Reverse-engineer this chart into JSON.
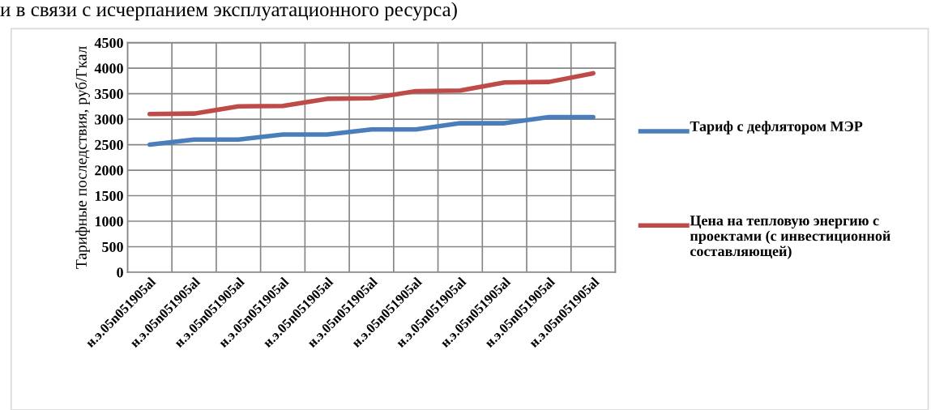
{
  "chart_data": {
    "type": "line",
    "ylabel": "Тарифные последствия, руб/Гкал",
    "annotations": [
      "и в связи с исчерпанием эксплуатационного ресурса)"
    ],
    "categories": [
      "н.э.05n051905al",
      "н.э.05n051905al",
      "н.э.05n051905al",
      "н.э.05n051905al",
      "н.э.05n051905al",
      "н.э.05n051905al",
      "н.э.05n051905al",
      "н.э.05n051905al",
      "н.э.05n051905al",
      "н.э.05n051905al",
      "н.э.05n051905al"
    ],
    "series": [
      {
        "name": "Тариф с дефлятором МЭР",
        "color": "#4a7ebb",
        "values": [
          2500,
          2600,
          2600,
          2700,
          2700,
          2800,
          2800,
          2920,
          2920,
          3040,
          3040
        ]
      },
      {
        "name": "Цена на тепловую энергию с проектами (с инвестиционной составляющей)",
        "color": "#be4b48",
        "values": [
          3100,
          3110,
          3250,
          3260,
          3400,
          3410,
          3550,
          3560,
          3720,
          3730,
          3900
        ]
      }
    ],
    "ylim": [
      0,
      4500
    ],
    "yticks": [
      0,
      500,
      1000,
      1500,
      2000,
      2500,
      3000,
      3500,
      4000,
      4500
    ],
    "grid": true,
    "legend": "right",
    "marker": "none",
    "line_style": "solid"
  }
}
